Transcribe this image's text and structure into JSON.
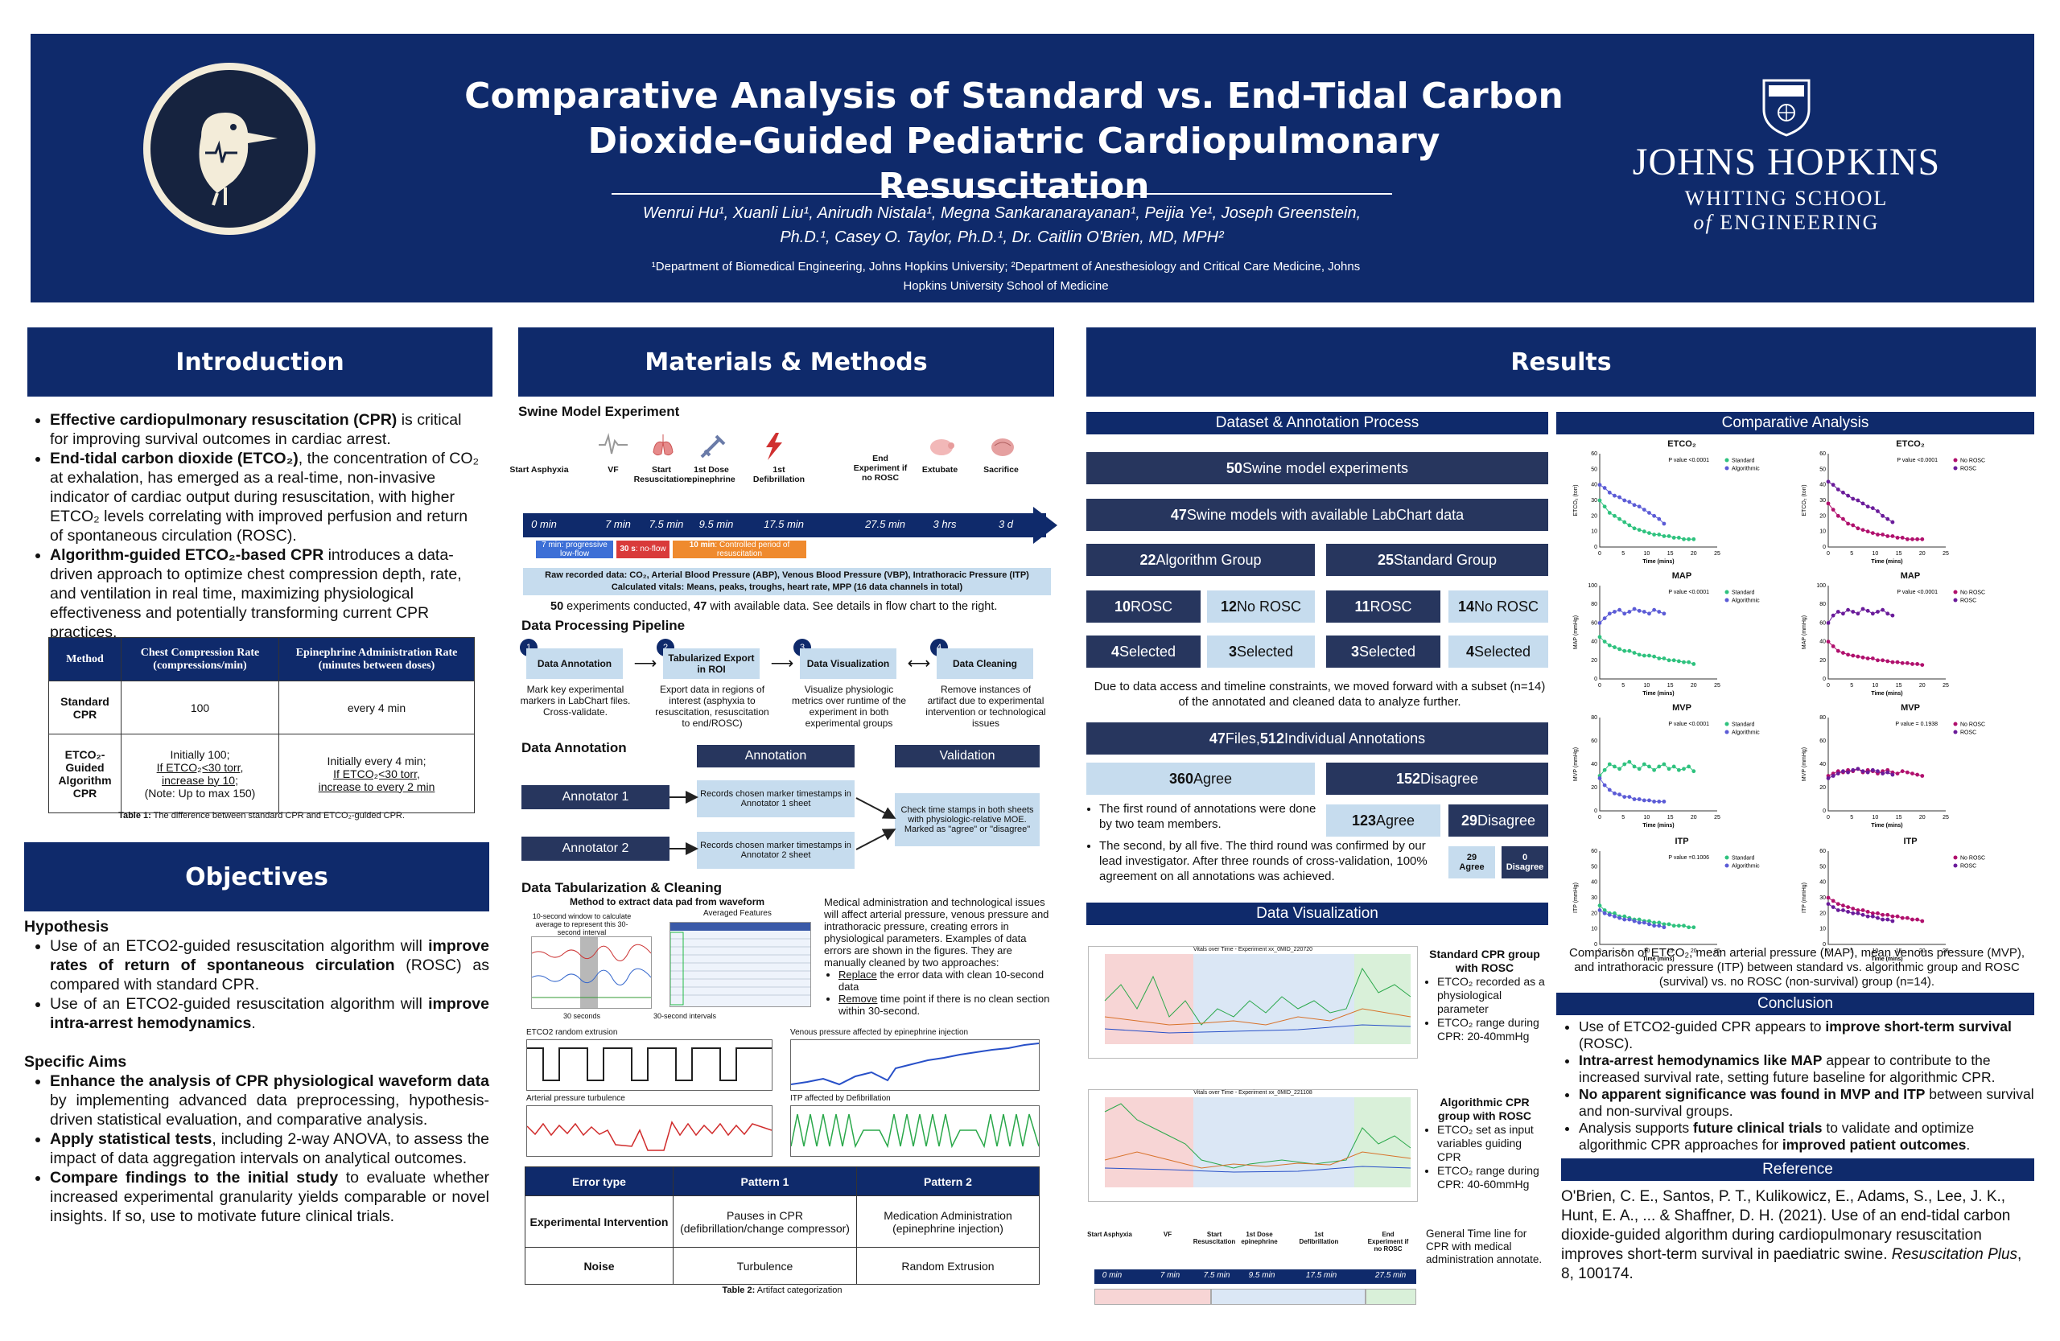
{
  "header": {
    "title_line1": "Comparative Analysis of Standard vs. End-Tidal Carbon",
    "title_line2": "Dioxide-Guided Pediatric Cardiopulmonary Resuscitation",
    "authors_line1": "Wenrui Hu¹, Xuanli Liu¹, Anirudh Nistala¹, Megna Sankaranarayanan¹, Peijia Ye¹, Joseph Greenstein,",
    "authors_line2": "Ph.D.¹, Casey O. Taylor, Ph.D.¹, Dr. Caitlin O'Brien, MD, MPH²",
    "affil_line1": "¹Department of Biomedical Engineering, Johns Hopkins University; ²Department of Anesthesiology and Critical Care Medicine, Johns",
    "affil_line2": "Hopkins University School of Medicine",
    "jh_name": "JOHNS HOPKINS",
    "jh_school1": "WHITING SCHOOL",
    "jh_school2_of": "of",
    "jh_school2": "ENGINEERING"
  },
  "intro": {
    "heading": "Introduction",
    "b1_bold": "Effective cardiopulmonary resuscitation (CPR)",
    "b1_rest": " is critical for improving survival outcomes in cardiac arrest.",
    "b2_bold": "End-tidal carbon dioxide (ETCO₂)",
    "b2_rest": ", the concentration of CO₂ at exhalation, has emerged as a real-time, non-invasive indicator of cardiac output during resuscitation, with higher ETCO₂ levels correlating with improved perfusion and return of spontaneous circulation (ROSC).",
    "b3_bold": "Algorithm-guided ETCO₂-based CPR",
    "b3_rest": " introduces a data-driven approach to optimize chest compression depth, rate, and ventilation in real time, maximizing physiological effectiveness and potentially transforming current CPR practices.",
    "table": {
      "h_method": "Method",
      "h_rate": "Chest Compression Rate (compressions/min)",
      "h_epi": "Epinephrine Administration Rate (minutes between doses)",
      "r1_method": "Standard CPR",
      "r1_rate": "100",
      "r1_epi": "every 4 min",
      "r2_method": "ETCO₂-Guided Algorithm CPR",
      "r2_rate_1": "Initially 100;",
      "r2_rate_2": "If ETCO₂<30 torr,",
      "r2_rate_3": "increase by 10;",
      "r2_rate_4": "(Note: Up to max 150)",
      "r2_epi_1": "Initially every 4 min;",
      "r2_epi_2": "If ETCO₂<30 torr,",
      "r2_epi_3": "increase to every 2 min"
    },
    "table_caption_bold": "Table 1:",
    "table_caption": " The difference between standard CPR and ETCO₂-guided CPR."
  },
  "objectives": {
    "heading": "Objectives",
    "hyp_title": "Hypothesis",
    "h1_a": "Use of an ETCO2-guided resuscitation algorithm will ",
    "h1_bold": "improve rates of return of spontaneous circulation",
    "h1_b": " (ROSC) as compared with standard CPR.",
    "h2_a": "Use of an ETCO2-guided resuscitation algorithm will ",
    "h2_bold": "improve intra-arrest hemodynamics",
    "h2_b": ".",
    "aims_title": "Specific Aims",
    "a1_bold": "Enhance the analysis of CPR physiological waveform data",
    "a1_rest": " by implementing advanced data preprocessing, hypothesis-driven statistical evaluation, and comparative analysis.",
    "a2_bold": "Apply statistical tests",
    "a2_rest": ", including 2-way ANOVA, to assess the impact of data aggregation intervals on analytical outcomes.",
    "a3_bold": "Compare findings to the initial study",
    "a3_rest": " to evaluate whether increased experimental granularity yields comparable or novel insights. If so, use to motivate future clinical trials."
  },
  "methods": {
    "heading": "Materials & Methods",
    "swine_title": "Swine Model Experiment",
    "timeline_events": [
      "Start Asphyxia",
      "VF",
      "Start Resuscitation",
      "1st Dose epinephrine",
      "1st Defibrillation",
      "End Experiment if no ROSC",
      "Extubate",
      "Sacrifice"
    ],
    "timeline_times": [
      "0 min",
      "7 min",
      "7.5 min",
      "9.5 min",
      "17.5 min",
      "27.5 min",
      "3 hrs",
      "3 d"
    ],
    "phase1": "7 min: progressive low-flow",
    "phase2_bold": "30 s",
    "phase2": ": no-flow",
    "phase3_bold": "10 min",
    "phase3": ": Controlled period of resuscitation",
    "raw_line1": "Raw recorded data: CO₂, Arterial Blood Pressure (ABP), Venous Blood Pressure (VBP), Intrathoracic Pressure (ITP)",
    "raw_line2": "Calculated vitals: Means, peaks, troughs, heart rate, MPP  (16 data channels in total)",
    "exp_n1": "50",
    "exp_t1": " experiments conducted, ",
    "exp_n2": "47",
    "exp_t2": " with available data. See details in flow chart to the right.",
    "pipeline_title": "Data Processing Pipeline",
    "pipeline": [
      {
        "num": "1",
        "name": "Data Annotation",
        "desc": "Mark key experimental markers in LabChart files. Cross-validate."
      },
      {
        "num": "2",
        "name": "Tabularized Export in ROI",
        "desc": "Export data in regions of interest (asphyxia to resuscitation, resuscitation to end/ROSC)"
      },
      {
        "num": "3",
        "name": "Data Visualization",
        "desc": "Visualize physiologic metrics over runtime of the experiment in both experimental groups"
      },
      {
        "num": "4",
        "name": "Data Cleaning",
        "desc": "Remove instances of artifact due to experimental intervention or technological issues"
      }
    ],
    "annot_title": "Data Annotation",
    "annot_col": "Annotation",
    "valid_col": "Validation",
    "annotator1": "Annotator 1",
    "annotator2": "Annotator 2",
    "annot1_desc": "Records chosen marker timestamps in Annotator 1 sheet",
    "annot2_desc": "Records chosen marker timestamps in Annotator 2 sheet",
    "valid_desc": "Check time stamps in both sheets with physiologic-relative MOE. Marked as \"agree\" or \"disagree\"",
    "tab_title": "Data Tabularization  & Cleaning",
    "tab_sub": "Method to extract data pad from waveform",
    "tab_note1": "10-second window to calculate average to represent this 30-second interval",
    "tab_avg": "Averaged Features",
    "tab_30s": "30 seconds",
    "tab_30int": "30-second intervals",
    "clean_p1": "Medical administration and technological issues will affect arterial pressure, venous pressure and intrathoracic pressure, creating errors in physiological parameters. Examples of data errors are shown in the figures. They are manually cleaned by two approaches:",
    "clean_b1_u": "Replace",
    "clean_b1": " the error data with clean 10-second data",
    "clean_b2_u": "Remove",
    "clean_b2": " time point if there is no clean section within 30-second.",
    "wave1": "ETCO2 random extrusion",
    "wave2": "Venous pressure affected by epinephrine injection",
    "wave3": "Arterial pressure turbulence",
    "wave4": "ITP affected by Defibrillation",
    "t2_h1": "Error type",
    "t2_h2": "Pattern 1",
    "t2_h3": "Pattern  2",
    "t2_r1c1": "Experimental Intervention",
    "t2_r1c2": "Pauses in CPR (defibrillation/change compressor)",
    "t2_r1c3": "Medication Administration (epinephrine injection)",
    "t2_r2c1": "Noise",
    "t2_r2c2": "Turbulence",
    "t2_r2c3": "Random Extrusion",
    "t2_caption_bold": "Table 2:",
    "t2_caption": " Artifact categorization"
  },
  "results": {
    "heading": "Results",
    "dataset_title": "Dataset & Annotation Process",
    "f1_n": "50",
    "f1": " Swine model experiments",
    "f2_n": "47",
    "f2": " Swine models with available LabChart data",
    "f3a_n": "22",
    "f3a": " Algorithm Group",
    "f3b_n": "25",
    "f3b": " Standard Group",
    "f4": [
      {
        "n": "10",
        "t": " ROSC"
      },
      {
        "n": "12",
        "t": " No ROSC"
      },
      {
        "n": "11",
        "t": " ROSC"
      },
      {
        "n": "14",
        "t": " No ROSC"
      }
    ],
    "f5": [
      {
        "n": "4",
        "t": " Selected"
      },
      {
        "n": "3",
        "t": " Selected"
      },
      {
        "n": "3",
        "t": " Selected"
      },
      {
        "n": "4",
        "t": " Selected"
      }
    ],
    "subset_note": "Due to data access and timeline constraints, we moved forward with a subset (n=14) of the annotated and cleaned data to analyze further.",
    "files_n1": "47",
    "files_t1": " Files, ",
    "files_n2": "512",
    "files_t2": " Individual Annotations",
    "agree_n": "360",
    "agree": " Agree",
    "disagree_n": "152",
    "disagree": " Disagree",
    "agree2_n": "123",
    "agree2": " Agree",
    "disagree2_n": "29",
    "disagree2": " Disagree",
    "agree3_n": "29",
    "agree3": "Agree",
    "disagree3_n": "0",
    "disagree3": "Disagree",
    "round1": "The first round of annotations were done by two team members.",
    "round2": "The second, by all five. The third round was confirmed by our lead investigator. After three rounds of cross-validation, 100% agreement on all annotations was achieved.",
    "dv_title": "Data Visualization",
    "dv_chart1_title": "Vitals over Time - Experiment xx_0MID_220720",
    "dv_chart2_title": "Vitals over Time - Experiment xx_0MID_221108",
    "std_title": "Standard CPR group with ROSC",
    "std_b1": "ETCO₂ recorded as a physiological parameter",
    "std_b2": "ETCO₂ range during CPR: 20-40mmHg",
    "alg_title": "Algorithmic CPR group with ROSC",
    "alg_b1": "ETCO₂ set as input variables guiding CPR",
    "alg_b2": "ETCO₂ range during CPR: 40-60mmHg",
    "timeline_note": "General Time line for CPR with medical administration annotate.",
    "mini_events": [
      "Start Asphyxia",
      "VF",
      "Start Resuscitation",
      "1st Dose epinephrine",
      "1st Defibrillation",
      "End Experiment if no ROSC"
    ],
    "mini_times": [
      "0 min",
      "7 min",
      "7.5 min",
      "9.5 min",
      "17.5 min",
      "27.5 min"
    ],
    "comp_title": "Comparative Analysis",
    "comp_caption": "Comparison of ETCO₂, mean arterial pressure (MAP), mean venous pressure (MVP), and intrathoracic pressure (ITP) between standard vs. algorithmic group and ROSC (survival) vs. no ROSC (non-survival) group (n=14).",
    "conclusion_title": "Conclusion",
    "c1_a": "Use of ETCO2-guided CPR appears to ",
    "c1_bold": "improve short-term survival",
    "c1_b": " (ROSC).",
    "c2_bold": "Intra-arrest hemodynamics like MAP",
    "c2_b": " appear to contribute to the increased survival rate, setting future baseline for algorithmic CPR.",
    "c3_bold": "No apparent significance was found in MVP and ITP",
    "c3_b": " between survival and non-survival groups.",
    "c4_a": "Analysis supports ",
    "c4_bold": "future clinical trials",
    "c4_b": " to validate and optimize algorithmic CPR approaches for ",
    "c4_bold2": "improved patient outcomes",
    "c4_c": ".",
    "ref_title": "Reference",
    "ref_text": "O'Brien, C. E., Santos, P. T., Kulikowicz, E., Adams, S., Lee, J. K., Hunt, E. A., ... & Shaffner, D. H. (2021). Use of an end-tidal carbon dioxide-guided algorithm during cardiopulmonary resuscitation improves short-term survival in paediatric swine. ",
    "ref_journal": "Resuscitation Plus",
    "ref_end": ", 8, 100174."
  },
  "chart_data": [
    {
      "type": "scatter",
      "title": "ETCO₂",
      "ylabel": "ETCO₂ (torr)",
      "xlabel": "Time (mins)",
      "ylim": [
        0,
        60
      ],
      "xlim": [
        0,
        25
      ],
      "annotation": "P value <0.0001",
      "series": [
        {
          "name": "Standard",
          "color": "#2ec27e",
          "values": [
            30,
            26,
            22,
            20,
            18,
            16,
            14,
            12,
            11,
            10,
            9,
            8,
            8,
            7,
            7,
            6,
            6,
            5,
            5,
            5
          ]
        },
        {
          "name": "Algorithmic",
          "color": "#5b5bd6",
          "values": [
            40,
            38,
            35,
            33,
            32,
            30,
            29,
            27,
            26,
            24,
            22,
            20,
            18,
            15
          ]
        }
      ]
    },
    {
      "type": "scatter",
      "title": "ETCO₂",
      "ylabel": "ETCO₂ (torr)",
      "xlabel": "Time (mins)",
      "ylim": [
        0,
        60
      ],
      "xlim": [
        0,
        25
      ],
      "annotation": "P value <0.0001",
      "series": [
        {
          "name": "No ROSC",
          "color": "#b0106d",
          "values": [
            28,
            24,
            20,
            18,
            15,
            14,
            12,
            11,
            10,
            9,
            8,
            8,
            7,
            7,
            6,
            6,
            5,
            5,
            5,
            5
          ]
        },
        {
          "name": "ROSC",
          "color": "#6a1b9a",
          "values": [
            42,
            40,
            37,
            35,
            33,
            31,
            30,
            28,
            26,
            25,
            23,
            20,
            18,
            16
          ]
        }
      ]
    },
    {
      "type": "scatter",
      "title": "MAP",
      "ylabel": "MAP (mmHg)",
      "xlabel": "Time (mins)",
      "ylim": [
        0,
        100
      ],
      "xlim": [
        0,
        25
      ],
      "annotation": "P value <0.0001",
      "series": [
        {
          "name": "Standard",
          "color": "#2ec27e",
          "values": [
            45,
            40,
            36,
            34,
            32,
            30,
            30,
            28,
            26,
            25,
            25,
            24,
            22,
            22,
            20,
            20,
            19,
            18,
            18,
            16
          ]
        },
        {
          "name": "Algorithmic",
          "color": "#5b5bd6",
          "values": [
            60,
            65,
            70,
            72,
            74,
            70,
            72,
            75,
            73,
            72,
            70,
            74,
            72,
            70
          ]
        }
      ]
    },
    {
      "type": "scatter",
      "title": "MAP",
      "ylabel": "MAP (mmHg)",
      "xlabel": "Time (mins)",
      "ylim": [
        0,
        100
      ],
      "xlim": [
        0,
        25
      ],
      "annotation": "P value <0.0001",
      "series": [
        {
          "name": "No ROSC",
          "color": "#b0106d",
          "values": [
            40,
            35,
            30,
            28,
            26,
            25,
            24,
            23,
            22,
            22,
            20,
            20,
            19,
            18,
            18,
            17,
            17,
            16,
            16,
            15
          ]
        },
        {
          "name": "ROSC",
          "color": "#6a1b9a",
          "values": [
            60,
            68,
            72,
            70,
            74,
            72,
            70,
            75,
            73,
            70,
            72,
            74,
            70,
            68
          ]
        }
      ]
    },
    {
      "type": "scatter",
      "title": "MVP",
      "ylabel": "MVP (mmHg)",
      "xlabel": "Time (mins)",
      "ylim": [
        0,
        80
      ],
      "xlim": [
        0,
        25
      ],
      "annotation": "P value <0.0001",
      "series": [
        {
          "name": "Standard",
          "color": "#2ec27e",
          "values": [
            30,
            35,
            40,
            38,
            36,
            40,
            42,
            38,
            36,
            40,
            38,
            35,
            38,
            40,
            36,
            38,
            35,
            36,
            38,
            34
          ]
        },
        {
          "name": "Algorithmic",
          "color": "#5b5bd6",
          "values": [
            28,
            22,
            18,
            15,
            14,
            12,
            12,
            10,
            10,
            9,
            9,
            8,
            8,
            8
          ]
        }
      ]
    },
    {
      "type": "scatter",
      "title": "MVP",
      "ylabel": "MVP (mmHg)",
      "xlabel": "Time (mins)",
      "ylim": [
        0,
        80
      ],
      "xlim": [
        0,
        25
      ],
      "annotation": "P value = 0.1938",
      "series": [
        {
          "name": "No ROSC",
          "color": "#b0106d",
          "values": [
            30,
            32,
            34,
            33,
            35,
            34,
            36,
            33,
            35,
            34,
            32,
            34,
            35,
            33,
            32,
            34,
            33,
            32,
            31,
            30
          ]
        },
        {
          "name": "ROSC",
          "color": "#6a1b9a",
          "values": [
            28,
            30,
            32,
            34,
            33,
            35,
            36,
            34,
            33,
            35,
            34,
            32,
            33,
            31
          ]
        }
      ]
    },
    {
      "type": "scatter",
      "title": "ITP",
      "ylabel": "ITP (mmHg)",
      "xlabel": "Time (mins)",
      "ylim": [
        0,
        60
      ],
      "xlim": [
        0,
        25
      ],
      "annotation": "P value =0.1006",
      "series": [
        {
          "name": "Standard",
          "color": "#2ec27e",
          "values": [
            25,
            22,
            20,
            20,
            18,
            18,
            17,
            16,
            16,
            15,
            15,
            14,
            14,
            13,
            13,
            12,
            12,
            12,
            11,
            11
          ]
        },
        {
          "name": "Algorithmic",
          "color": "#5b5bd6",
          "values": [
            22,
            20,
            19,
            18,
            17,
            16,
            16,
            15,
            14,
            14,
            13,
            12,
            12,
            11
          ]
        }
      ]
    },
    {
      "type": "scatter",
      "title": "ITP",
      "ylabel": "ITP (mmHg)",
      "xlabel": "Time (mins)",
      "ylim": [
        0,
        60
      ],
      "xlim": [
        0,
        25
      ],
      "annotation": "",
      "series": [
        {
          "name": "No ROSC",
          "color": "#b0106d",
          "values": [
            30,
            28,
            26,
            25,
            24,
            23,
            22,
            22,
            21,
            20,
            20,
            19,
            19,
            18,
            18,
            17,
            17,
            16,
            16,
            15
          ]
        },
        {
          "name": "ROSC",
          "color": "#6a1b9a",
          "values": [
            26,
            24,
            22,
            22,
            21,
            20,
            20,
            19,
            18,
            18,
            17,
            16,
            16,
            15
          ]
        }
      ]
    }
  ]
}
